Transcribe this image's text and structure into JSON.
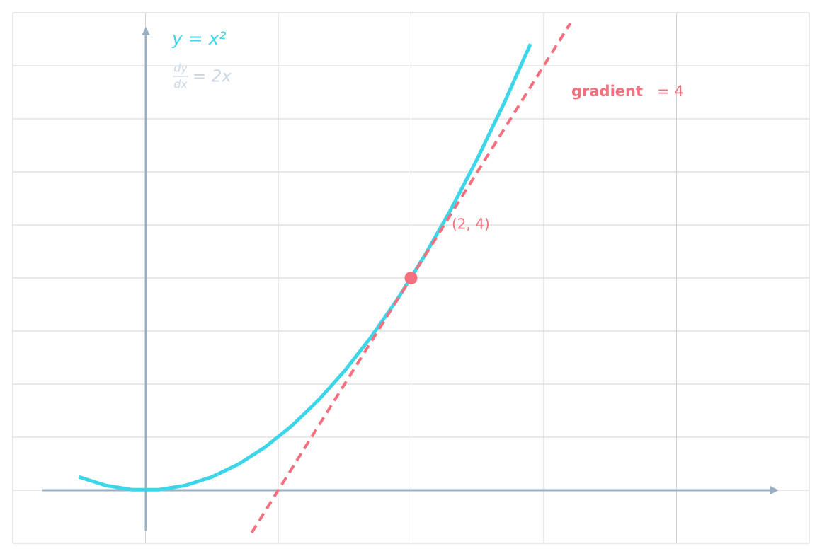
{
  "chart_data": {
    "type": "line",
    "xlim": [
      -1,
      5
    ],
    "ylim": [
      -1,
      9
    ],
    "xticks": [
      -1,
      0,
      1,
      2,
      3,
      4,
      5
    ],
    "yticks": [
      -1,
      0,
      1,
      2,
      3,
      4,
      5,
      6,
      7,
      8,
      9
    ],
    "grid": true,
    "series": [
      {
        "name": "y = x²",
        "color": "#3dd5e8",
        "x": [
          -0.5,
          -0.3,
          -0.1,
          0.1,
          0.3,
          0.5,
          0.7,
          0.9,
          1.1,
          1.3,
          1.5,
          1.7,
          1.9,
          2.1,
          2.3,
          2.5,
          2.7,
          2.9
        ],
        "values": [
          0.25,
          0.09,
          0.01,
          0.01,
          0.09,
          0.25,
          0.49,
          0.81,
          1.21,
          1.69,
          2.25,
          2.89,
          3.61,
          4.41,
          5.29,
          6.25,
          7.29,
          8.41
        ]
      },
      {
        "color": "#f4707f",
        "x": [
          0.8,
          3.2
        ],
        "values": [
          -0.8,
          8.8
        ],
        "dashed": true
      }
    ],
    "derivative_label": {
      "numerator": "dy",
      "denominator": "dx",
      "rhs": "= 2x"
    },
    "gradient_label": {
      "word": "gradient",
      "rhs": "= 4"
    },
    "point": {
      "x": 2,
      "y": 4,
      "label": "(2, 4)",
      "color": "#f4707f"
    }
  }
}
